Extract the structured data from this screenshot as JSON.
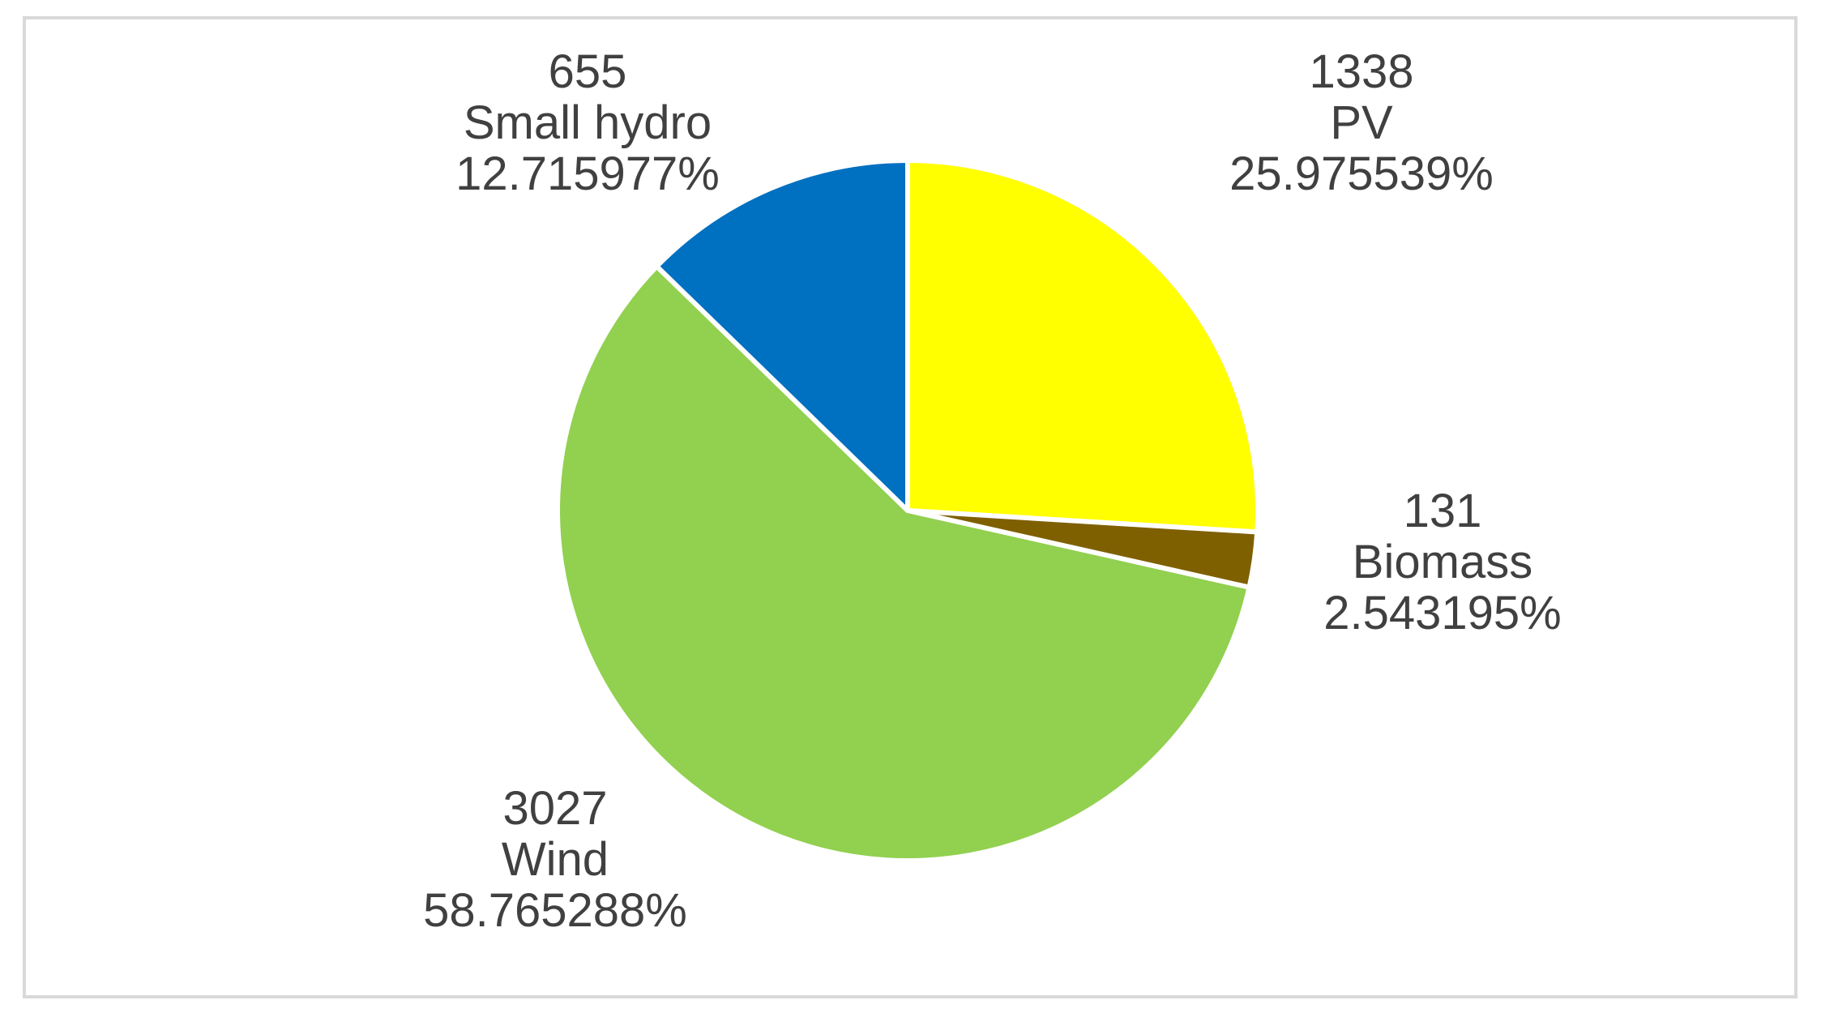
{
  "chart_data": {
    "type": "pie",
    "title": "",
    "slices": [
      {
        "name": "PV",
        "value": 1338,
        "percent": "25.975539%",
        "color": "#FFFF00"
      },
      {
        "name": "Biomass",
        "value": 131,
        "percent": "2.543195%",
        "color": "#7F6000"
      },
      {
        "name": "Wind",
        "value": 3027,
        "percent": "58.765288%",
        "color": "#92D050"
      },
      {
        "name": "Small hydro",
        "value": 655,
        "percent": "12.715977%",
        "color": "#0070C0"
      }
    ],
    "start_angle": "12 o'clock",
    "direction": "clockwise",
    "legend": "none",
    "data_labels": "value, category name, percentage"
  }
}
